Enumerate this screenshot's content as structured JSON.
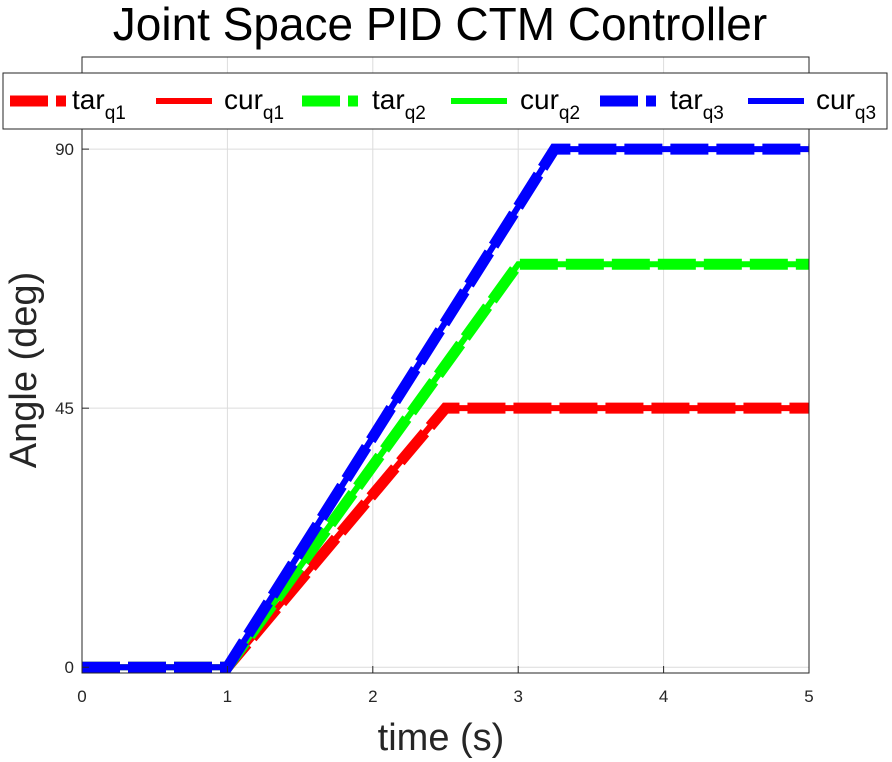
{
  "chart_data": {
    "type": "line",
    "title": "Joint Space PID CTM Controller",
    "xlabel": "time (s)",
    "ylabel": "Angle (deg)",
    "xlim": [
      0,
      5
    ],
    "ylim": [
      -1,
      106
    ],
    "xticks": [
      0,
      1,
      2,
      3,
      4,
      5
    ],
    "yticks": [
      0,
      45,
      90
    ],
    "grid": true,
    "legend_placement": "top",
    "series": [
      {
        "name": "tar",
        "sub": "q1",
        "color": "#ff0000",
        "style": "dashed",
        "x": [
          0,
          1,
          2.5,
          5
        ],
        "y": [
          0,
          0,
          45,
          45
        ]
      },
      {
        "name": "cur",
        "sub": "q1",
        "color": "#ff0000",
        "style": "solid",
        "x": [
          0,
          1,
          2.5,
          5
        ],
        "y": [
          0,
          0,
          45,
          45
        ]
      },
      {
        "name": "tar",
        "sub": "q2",
        "color": "#00ff00",
        "style": "dashed",
        "x": [
          0,
          1,
          3,
          5
        ],
        "y": [
          0,
          0,
          70,
          70
        ]
      },
      {
        "name": "cur",
        "sub": "q2",
        "color": "#00ff00",
        "style": "solid",
        "x": [
          0,
          1,
          3,
          5
        ],
        "y": [
          0,
          0,
          70,
          70
        ]
      },
      {
        "name": "tar",
        "sub": "q3",
        "color": "#0000ff",
        "style": "dashed",
        "x": [
          0,
          1,
          3.25,
          5
        ],
        "y": [
          0,
          0,
          90,
          90
        ]
      },
      {
        "name": "cur",
        "sub": "q3",
        "color": "#0000ff",
        "style": "solid",
        "x": [
          0,
          1,
          3.25,
          5
        ],
        "y": [
          0,
          0,
          90,
          90
        ]
      }
    ]
  }
}
